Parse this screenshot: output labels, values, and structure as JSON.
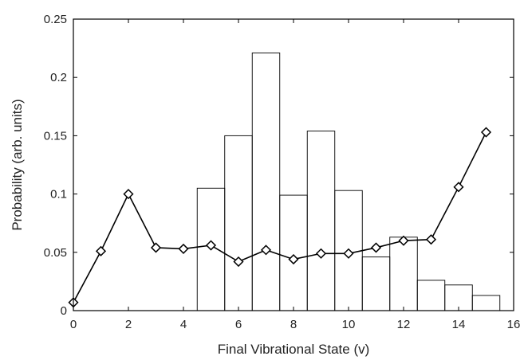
{
  "chart_data": {
    "type": "bar+line",
    "title": "",
    "xlabel": "Final Vibrational State (v)",
    "ylabel": "Probability (arb. units)",
    "xlim": [
      0,
      16
    ],
    "ylim": [
      0,
      0.25
    ],
    "xticks": [
      "0",
      "2",
      "4",
      "6",
      "8",
      "10",
      "12",
      "14",
      "16"
    ],
    "yticks": [
      "0",
      "0.05",
      "0.1",
      "0.15",
      "0.2",
      "0.25"
    ],
    "grid": false,
    "legend": "none",
    "series": [
      {
        "type": "histogram",
        "x": [
          5,
          6,
          7,
          8,
          9,
          10,
          11,
          12,
          13,
          14,
          15
        ],
        "values": [
          0.105,
          0.15,
          0.221,
          0.099,
          0.154,
          0.103,
          0.046,
          0.063,
          0.026,
          0.022,
          0.013
        ]
      },
      {
        "type": "line",
        "marker": "diamond",
        "x": [
          0,
          1,
          2,
          3,
          4,
          5,
          6,
          7,
          8,
          9,
          10,
          11,
          12,
          13,
          14,
          15
        ],
        "values": [
          0.007,
          0.051,
          0.1,
          0.054,
          0.053,
          0.056,
          0.042,
          0.052,
          0.044,
          0.049,
          0.049,
          0.054,
          0.06,
          0.061,
          0.106,
          0.153
        ]
      }
    ]
  }
}
